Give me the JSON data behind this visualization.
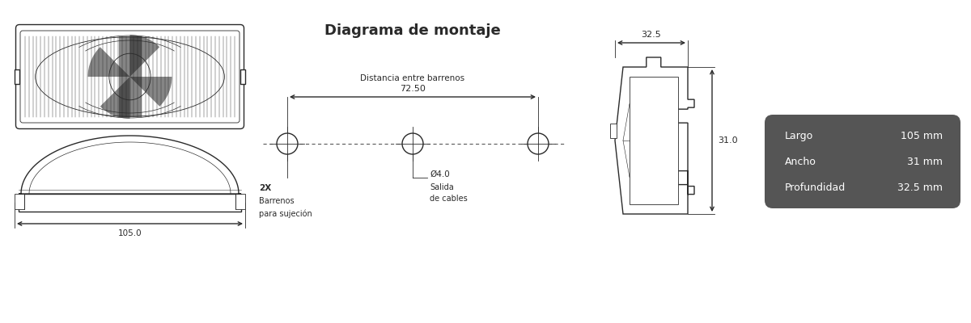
{
  "bg_color": "#ffffff",
  "line_color": "#2a2a2a",
  "dark_box_color": "#555555",
  "title": "Diagrama de montaje",
  "specs": [
    {
      "label": "Largo",
      "value": "105 mm"
    },
    {
      "label": "Ancho",
      "value": "31 mm"
    },
    {
      "label": "Profundidad",
      "value": "32.5 mm"
    }
  ],
  "dim_105": "105.0",
  "dim_72_50": "72.50",
  "dim_dist": "Distancia entre barrenos",
  "dim_d4": "Ø4.0",
  "dim_salida": "Salida",
  "dim_cables": "de cables",
  "dim_2x": "2X",
  "dim_barrenos": "Barrenos",
  "dim_sujecion": "para sujeción",
  "dim_32_5": "32.5",
  "dim_31": "31.0"
}
